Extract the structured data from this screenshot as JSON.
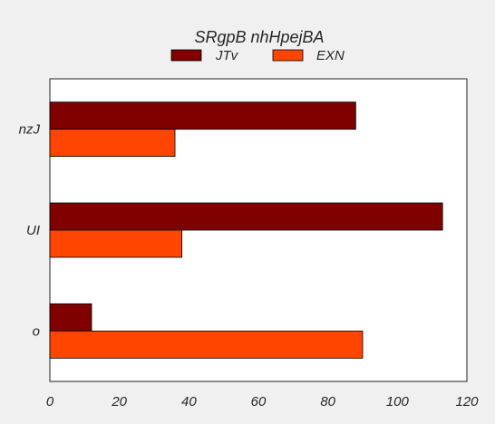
{
  "chart_data": {
    "type": "bar",
    "orientation": "horizontal",
    "title": "SRgpB nhHpejBA",
    "xlabel": "",
    "ylabel": "",
    "categories": [
      "nzJ",
      "UI",
      "o"
    ],
    "series": [
      {
        "name": "JTv",
        "values": [
          88,
          113,
          12
        ],
        "color": "#800000"
      },
      {
        "name": "EXN",
        "values": [
          36,
          38,
          90
        ],
        "color": "#ff4500"
      }
    ],
    "xlim": [
      0,
      120
    ],
    "x_ticks": [
      "0",
      "20",
      "40",
      "60",
      "80",
      "100",
      "120"
    ],
    "grid": false,
    "legend_position": "top-center"
  }
}
